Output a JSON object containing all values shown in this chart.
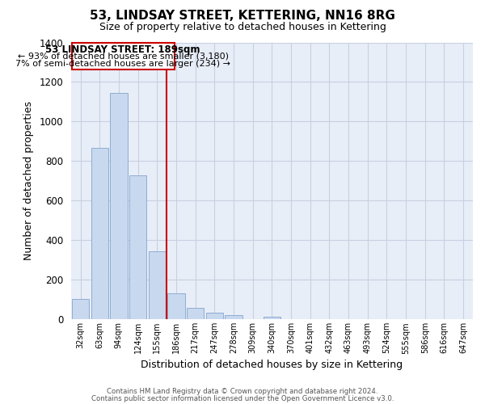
{
  "title": "53, LINDSAY STREET, KETTERING, NN16 8RG",
  "subtitle": "Size of property relative to detached houses in Kettering",
  "xlabel": "Distribution of detached houses by size in Kettering",
  "ylabel": "Number of detached properties",
  "bar_color": "#c8d8ee",
  "bar_edge_color": "#8eadd4",
  "marker_line_color": "#cc0000",
  "background_color": "#ffffff",
  "plot_bg_color": "#e8eef8",
  "grid_color": "#c8cfe0",
  "annotation_box_edge": "#cc0000",
  "bin_labels": [
    "32sqm",
    "63sqm",
    "94sqm",
    "124sqm",
    "155sqm",
    "186sqm",
    "217sqm",
    "247sqm",
    "278sqm",
    "309sqm",
    "340sqm",
    "370sqm",
    "401sqm",
    "432sqm",
    "463sqm",
    "493sqm",
    "524sqm",
    "555sqm",
    "586sqm",
    "616sqm",
    "647sqm"
  ],
  "bar_heights": [
    105,
    865,
    1145,
    730,
    345,
    130,
    60,
    32,
    20,
    0,
    15,
    0,
    0,
    0,
    0,
    0,
    0,
    0,
    0,
    0,
    0
  ],
  "marker_bin_index": 4,
  "annotation_title": "53 LINDSAY STREET: 189sqm",
  "annotation_line1": "← 93% of detached houses are smaller (3,180)",
  "annotation_line2": "7% of semi-detached houses are larger (234) →",
  "footer_line1": "Contains HM Land Registry data © Crown copyright and database right 2024.",
  "footer_line2": "Contains public sector information licensed under the Open Government Licence v3.0.",
  "ylim": [
    0,
    1400
  ],
  "yticks": [
    0,
    200,
    400,
    600,
    800,
    1000,
    1200,
    1400
  ]
}
